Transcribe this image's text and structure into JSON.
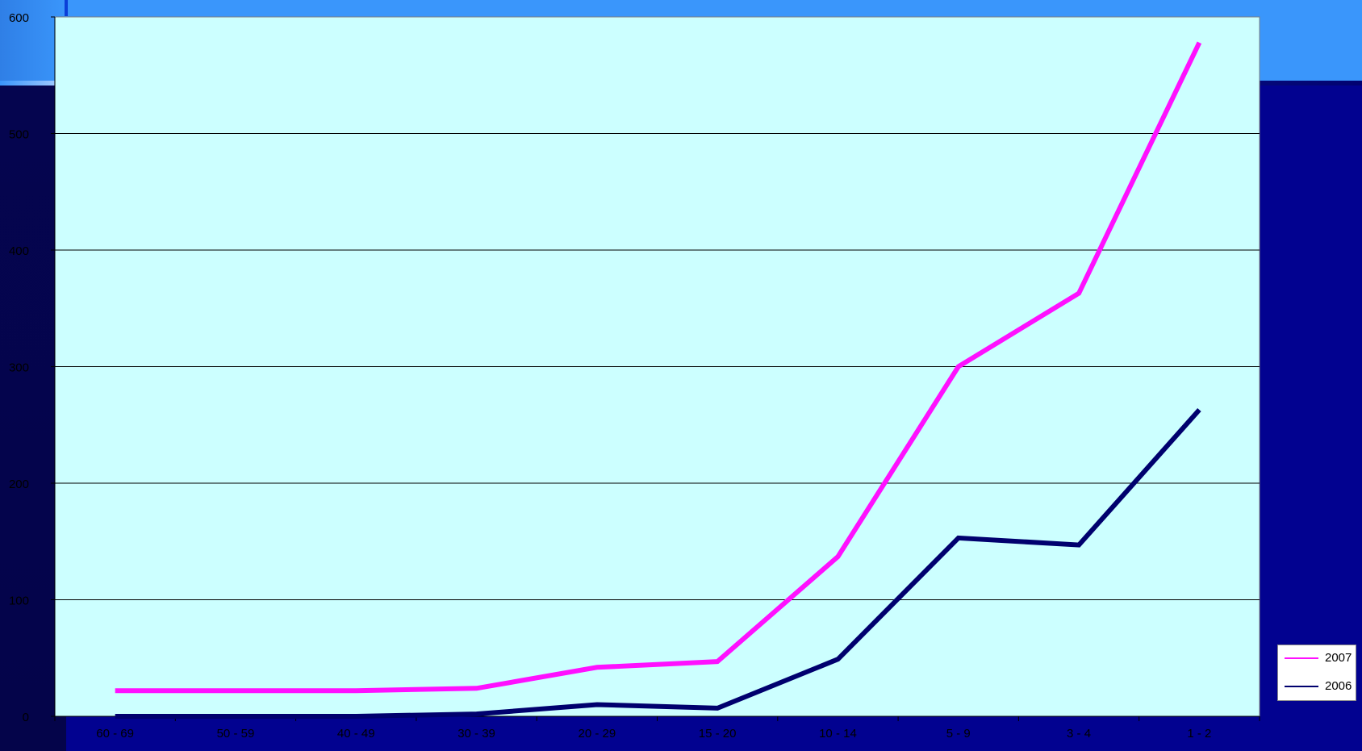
{
  "chart_data": {
    "type": "line",
    "categories": [
      "60 - 69",
      "50 - 59",
      "40 - 49",
      "30 - 39",
      "20 - 29",
      "15 - 20",
      "10 - 14",
      "5 - 9",
      "3 - 4",
      "1 - 2"
    ],
    "series": [
      {
        "name": "2007",
        "color": "#ff10ff",
        "values": [
          22,
          22,
          22,
          24,
          42,
          47,
          137,
          300,
          363,
          578
        ]
      },
      {
        "name": "2006",
        "color": "#00006e",
        "values": [
          0,
          0,
          0,
          2,
          10,
          7,
          49,
          153,
          147,
          263
        ]
      }
    ],
    "ylim": [
      0,
      600
    ],
    "yticks": [
      "0",
      "100",
      "200",
      "300",
      "400",
      "500",
      "600"
    ],
    "grid": true,
    "legend_position": "bottom-right",
    "plot_background": "#ccffff"
  }
}
